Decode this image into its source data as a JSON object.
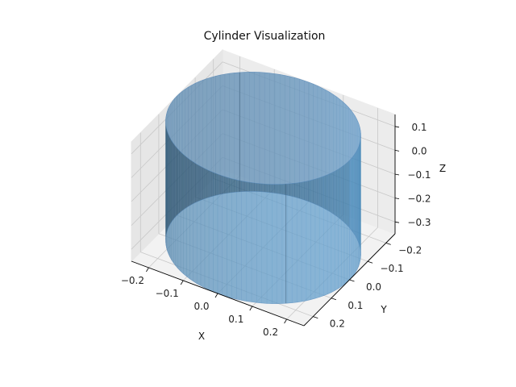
{
  "chart_data": {
    "type": "surface3d",
    "title": "Cylinder Visualization",
    "xlabel": "X",
    "ylabel": "Y",
    "zlabel": "Z",
    "x_ticks": [
      -0.2,
      -0.1,
      0.0,
      0.1,
      0.2
    ],
    "y_ticks": [
      -0.2,
      -0.1,
      0.0,
      0.1,
      0.2
    ],
    "z_ticks": [
      0.1,
      0.0,
      -0.1,
      -0.2,
      -0.3
    ],
    "x_tick_labels": [
      "−0.2",
      "−0.1",
      "0.0",
      "0.1",
      "0.2"
    ],
    "y_tick_labels": [
      "−0.2",
      "−0.1",
      "0.0",
      "0.1",
      "0.2"
    ],
    "z_tick_labels": [
      "0.1",
      "0.0",
      "−0.1",
      "−0.2",
      "−0.3"
    ],
    "xlim": [
      -0.25,
      0.25
    ],
    "ylim": [
      -0.25,
      0.25
    ],
    "zlim": [
      -0.35,
      0.15
    ],
    "cylinder": {
      "radius": 0.25,
      "z_bottom": -0.35,
      "z_top": 0.15
    },
    "grid": true,
    "colors": {
      "surface": "#4a90c4",
      "edge_dark": "#3b5b77",
      "pane": "#f2f2f2"
    }
  }
}
